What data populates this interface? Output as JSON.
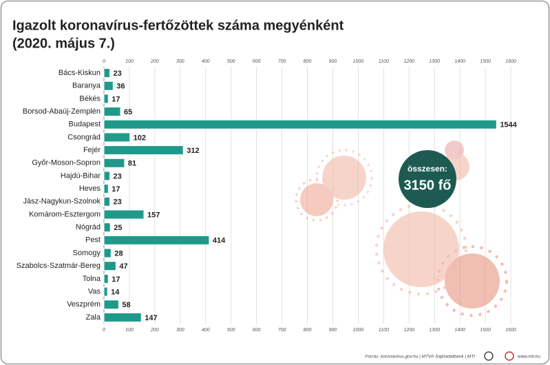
{
  "chart_data": {
    "type": "hbar",
    "title": "Igazolt koronavírus-fertőzöttek száma megyénként",
    "subtitle": "(2020. május 7.)",
    "categories": [
      "Bács-Kiskun",
      "Baranya",
      "Békés",
      "Borsod-Abaúj-Zemplén",
      "Budapest",
      "Csongrád",
      "Fejér",
      "Győr-Moson-Sopron",
      "Hajdú-Bihar",
      "Heves",
      "Jász-Nagykun-Szolnok",
      "Komárom-Esztergom",
      "Nógrád",
      "Pest",
      "Somogy",
      "Szabolcs-Szatmár-Bereg",
      "Tolna",
      "Vas",
      "Veszprém",
      "Zala"
    ],
    "values": [
      23,
      36,
      17,
      65,
      1544,
      102,
      312,
      81,
      23,
      17,
      23,
      157,
      25,
      414,
      28,
      47,
      17,
      14,
      58,
      147
    ],
    "color": "#1f9a8a",
    "xlim": [
      0,
      1600
    ],
    "xticks": [
      0,
      100,
      200,
      300,
      400,
      500,
      600,
      700,
      800,
      900,
      1000,
      1100,
      1200,
      1300,
      1400,
      1500,
      1600
    ],
    "grid": true,
    "annotations": [
      "összesen:",
      "3150 fő"
    ],
    "source": "Forrás: koronavirus.gov.hu | MTVA Sajtóadatbank | MTI",
    "website": "www.mti.hu"
  }
}
